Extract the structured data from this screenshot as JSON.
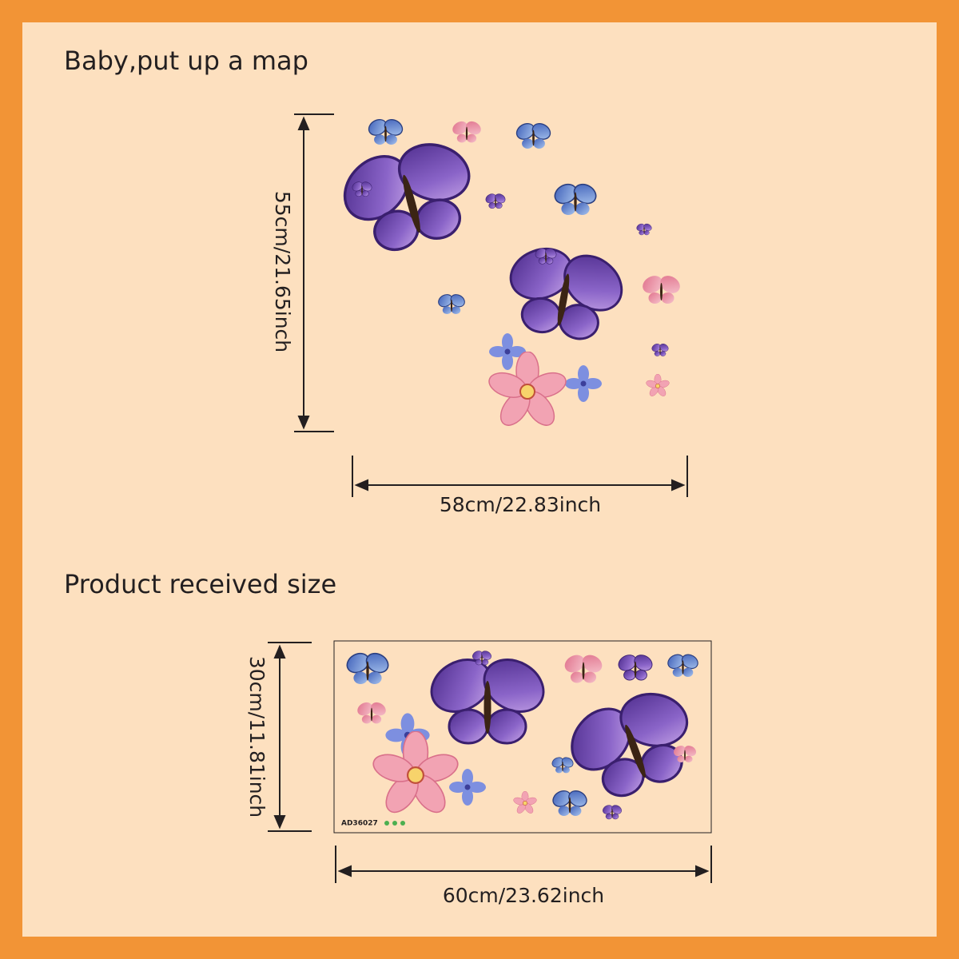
{
  "heading_installed": "Baby,put up a map",
  "installed_size": {
    "height_label": "55cm/21.65inch",
    "width_label": "58cm/22.83inch"
  },
  "heading_received": "Product received size",
  "received_size": {
    "height_label": "30cm/11.81inch",
    "width_label": "60cm/23.62inch",
    "product_code": "AD36027"
  }
}
